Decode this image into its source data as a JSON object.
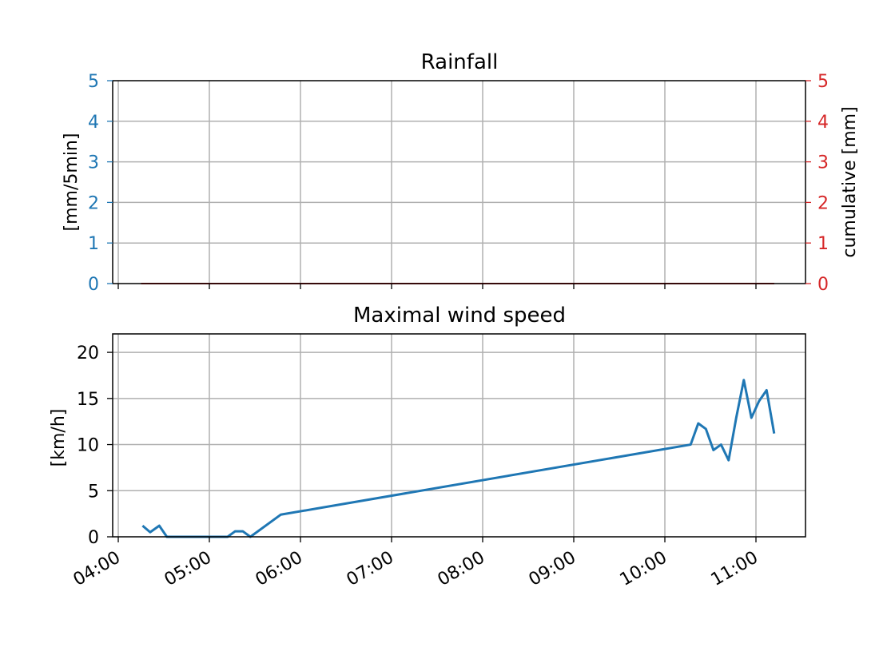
{
  "chart_data": [
    {
      "type": "bar",
      "title": "Rainfall",
      "ylabel": "[mm/5min]",
      "ylabel_right": "cumulative [mm]",
      "ylim": [
        0,
        5
      ],
      "ylim_right": [
        0,
        5
      ],
      "yticks": [
        "0",
        "1",
        "2",
        "3",
        "4",
        "5"
      ],
      "yticks_right": [
        "0",
        "1",
        "2",
        "3",
        "4",
        "5"
      ],
      "xlim": [
        "04:00",
        "11:00"
      ],
      "grid": true,
      "colors": {
        "left_axis": "#1f77b4",
        "right_axis": "#d62728",
        "cumulative_line": "#d62728"
      },
      "series": [
        {
          "axis": "left",
          "x": [
            "04:15",
            "11:12"
          ],
          "values": [
            0,
            0
          ]
        },
        {
          "axis": "right",
          "x": [
            "04:15",
            "11:12"
          ],
          "values": [
            0,
            0
          ]
        }
      ]
    },
    {
      "type": "line",
      "title": "Maximal wind speed",
      "ylabel": "[km/h]",
      "ylim": [
        0,
        22
      ],
      "yticks": [
        "0",
        "5",
        "10",
        "15",
        "20"
      ],
      "xticks": [
        "04:00",
        "05:00",
        "06:00",
        "07:00",
        "08:00",
        "09:00",
        "10:00",
        "11:00"
      ],
      "grid": true,
      "colors": {
        "line": "#1f77b4"
      },
      "series": [
        {
          "x": [
            "04:16",
            "04:21",
            "04:27",
            "04:32",
            "05:12",
            "05:17",
            "05:22",
            "05:27",
            "05:47",
            "10:17",
            "10:22",
            "10:27",
            "10:32",
            "10:37",
            "10:42",
            "10:47",
            "10:52",
            "10:57",
            "11:02",
            "11:07",
            "11:12"
          ],
          "values": [
            1.2,
            0.5,
            1.2,
            0,
            0,
            0.6,
            0.6,
            0,
            2.4,
            10.0,
            12.3,
            11.7,
            9.4,
            10.0,
            8.3,
            12.9,
            17.0,
            12.9,
            14.7,
            15.9,
            11.2
          ]
        }
      ]
    }
  ]
}
